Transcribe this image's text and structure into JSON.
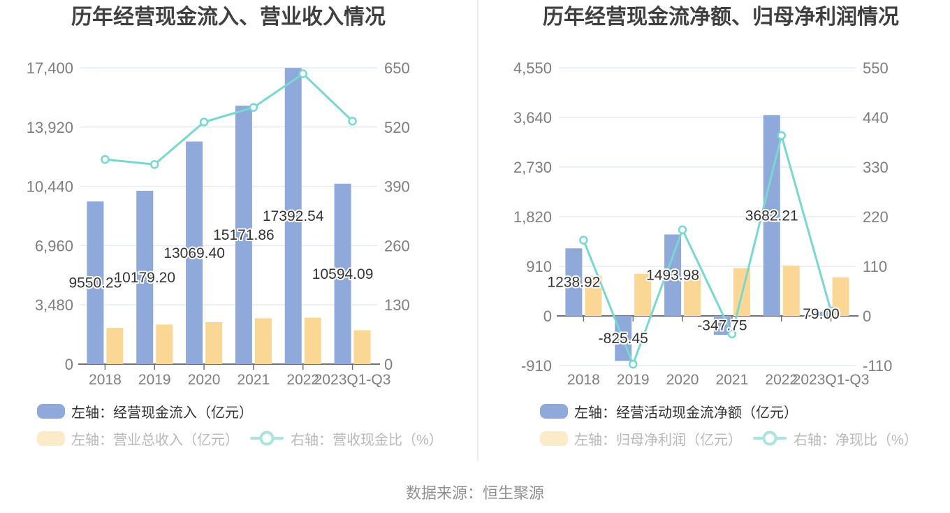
{
  "page": {
    "source_note": "数据来源：恒生聚源"
  },
  "colors": {
    "bar_blue": "#8FA9DA",
    "bar_yellow": "#FBD795",
    "line_teal": "#78D8D0",
    "legend_dim_yellow": "#FCEBC9",
    "legend_dim_teal": "#ABE4DF",
    "gridline": "#E4EAF6",
    "axis_line": "#6E707A",
    "axis_label": "#7E7E7E",
    "value_label": "#333333",
    "title": "#3F3F3F",
    "legend_text_active": "#333333",
    "legend_text_dim": "#B8B8B8",
    "source_text": "#8F8F8F",
    "divider": "#ECECEC"
  },
  "chart_data": [
    {
      "type": "bar+line",
      "title": "历年经营现金流入、营业收入情况",
      "categories": [
        "2018",
        "2019",
        "2020",
        "2021",
        "2022",
        "2023Q1-Q3"
      ],
      "grid": true,
      "legend_position": "bottom-left",
      "left_axis": {
        "min": 0,
        "max": 17400,
        "tick_values": [
          0,
          3480,
          6960,
          10440,
          13920,
          17400
        ],
        "tick_labels": [
          "0",
          "3,480",
          "6,960",
          "10,440",
          "13,920",
          "17,400"
        ]
      },
      "right_axis": {
        "min": 0,
        "max": 650,
        "tick_values": [
          0,
          130,
          260,
          390,
          520,
          650
        ],
        "tick_labels": [
          "0",
          "130",
          "260",
          "390",
          "520",
          "650"
        ]
      },
      "series": [
        {
          "id": "operating-cash-inflow",
          "name": "左轴：经营现金流入（亿元）",
          "type": "bar",
          "axis": "left",
          "color": "#8FA9DA",
          "values": [
            9550.25,
            10179.2,
            13069.4,
            15171.86,
            17392.54,
            10594.09
          ],
          "labels": [
            "9550.25",
            "10179.20",
            "13069.40",
            "15171.86",
            "17392.54",
            "10594.09"
          ]
        },
        {
          "id": "total-operating-revenue",
          "name": "左轴：营业总收入（亿元）",
          "type": "bar",
          "axis": "left",
          "color": "#FBD795",
          "values": [
            2127,
            2325,
            2462,
            2694,
            2730,
            1989
          ]
        },
        {
          "id": "revenue-cash-ratio",
          "name": "右轴：营收现金比（%）",
          "type": "line",
          "axis": "right",
          "color": "#78D8D0",
          "values": [
            449,
            438,
            531,
            563,
            637,
            533
          ]
        }
      ]
    },
    {
      "type": "bar+line",
      "title": "历年经营现金流净额、归母净利润情况",
      "categories": [
        "2018",
        "2019",
        "2020",
        "2021",
        "2022",
        "2023Q1-Q3"
      ],
      "grid": true,
      "legend_position": "bottom-left",
      "left_axis": {
        "min": -910,
        "max": 4550,
        "tick_values": [
          -910,
          0,
          910,
          1820,
          2730,
          3640,
          4550
        ],
        "tick_labels": [
          "-910",
          "0",
          "910",
          "1,820",
          "2,730",
          "3,640",
          "4,550"
        ]
      },
      "right_axis": {
        "min": -110,
        "max": 550,
        "tick_values": [
          -110,
          0,
          110,
          220,
          330,
          440,
          550
        ],
        "tick_labels": [
          "-110",
          "0",
          "110",
          "220",
          "330",
          "440",
          "550"
        ]
      },
      "series": [
        {
          "id": "net-operating-cashflow",
          "name": "左轴：经营活动现金流净额（亿元）",
          "type": "bar",
          "axis": "left",
          "color": "#8FA9DA",
          "values": [
            1238.92,
            -825.45,
            1493.98,
            -347.75,
            3682.21,
            79.0
          ],
          "labels": [
            "1238.92",
            "-825.45",
            "1493.98",
            "-347.75",
            "3682.21",
            "79.00"
          ]
        },
        {
          "id": "net-profit-attributable",
          "name": "左轴：归母净利润（亿元）",
          "type": "bar",
          "axis": "left",
          "color": "#FBD795",
          "values": [
            736,
            773,
            783,
            876,
            921,
            707
          ]
        },
        {
          "id": "net-cash-ratio",
          "name": "右轴：净现比（%）",
          "type": "line",
          "axis": "right",
          "color": "#78D8D0",
          "values": [
            168,
            -107,
            191,
            -40,
            400,
            11
          ]
        }
      ]
    }
  ]
}
